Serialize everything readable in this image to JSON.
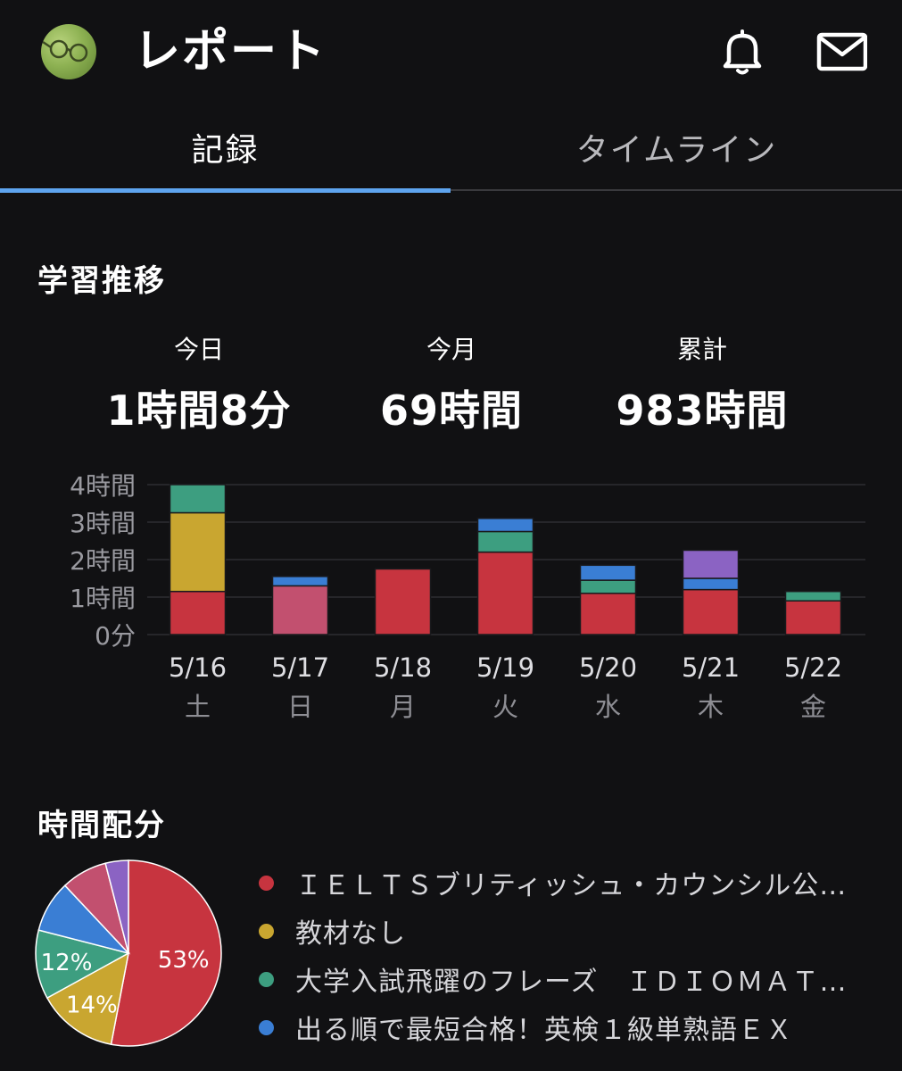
{
  "header": {
    "title": "レポート",
    "bell_icon": "bell-icon",
    "mail_icon": "mail-icon",
    "avatar_icon": "glasses-avatar"
  },
  "tabs": [
    {
      "label": "記録",
      "active": true
    },
    {
      "label": "タイムライン",
      "active": false
    }
  ],
  "section_trend": {
    "title": "学習推移"
  },
  "stats": [
    {
      "label": "今日",
      "value": "1時間8分"
    },
    {
      "label": "今月",
      "value": "69時間"
    },
    {
      "label": "累計",
      "value": "983時間"
    }
  ],
  "section_alloc": {
    "title": "時間配分"
  },
  "colors": {
    "red": "#c7343f",
    "yellow": "#c9a630",
    "green": "#3d9e80",
    "blue": "#3a7ed4",
    "pink": "#c2506f",
    "purple": "#8b63c3",
    "accent": "#5ea4ef"
  },
  "chart_data": [
    {
      "type": "bar",
      "stacked": true,
      "categories": [
        "5/16",
        "5/17",
        "5/18",
        "5/19",
        "5/20",
        "5/21",
        "5/22"
      ],
      "weekdays": [
        "土",
        "日",
        "月",
        "火",
        "水",
        "木",
        "金"
      ],
      "y_ticks": [
        "0分",
        "1時間",
        "2時間",
        "3時間",
        "4時間"
      ],
      "ylim": [
        0,
        4
      ],
      "grid": true,
      "series": [
        {
          "color": "#c7343f",
          "values": [
            1.15,
            0,
            1.75,
            2.2,
            1.1,
            1.2,
            0.9
          ]
        },
        {
          "color": "#c2506f",
          "values": [
            0,
            1.3,
            0,
            0,
            0,
            0,
            0
          ]
        },
        {
          "color": "#c9a630",
          "values": [
            2.1,
            0,
            0,
            0,
            0,
            0,
            0
          ]
        },
        {
          "color": "#3d9e80",
          "values": [
            0.75,
            0,
            0,
            0.55,
            0.35,
            0,
            0.25
          ]
        },
        {
          "color": "#3a7ed4",
          "values": [
            0,
            0.25,
            0,
            0.35,
            0.4,
            0.3,
            0
          ]
        },
        {
          "color": "#8b63c3",
          "values": [
            0,
            0,
            0,
            0,
            0,
            0.75,
            0
          ]
        }
      ]
    },
    {
      "type": "pie",
      "slices": [
        {
          "color": "#c7343f",
          "value": 53,
          "label": "53%"
        },
        {
          "color": "#c9a630",
          "value": 14,
          "label": "14%"
        },
        {
          "color": "#3d9e80",
          "value": 12,
          "label": "12%"
        },
        {
          "color": "#3a7ed4",
          "value": 9,
          "label": ""
        },
        {
          "color": "#c2506f",
          "value": 8,
          "label": ""
        },
        {
          "color": "#8b63c3",
          "value": 4,
          "label": ""
        }
      ],
      "legend": [
        {
          "color": "#c7343f",
          "label": "ＩＥＬＴＳブリティッシュ・カウンシル公…"
        },
        {
          "color": "#c9a630",
          "label": "教材なし"
        },
        {
          "color": "#3d9e80",
          "label": "大学入試飛躍のフレーズ　ＩＤＩＯＭＡＴ…"
        },
        {
          "color": "#3a7ed4",
          "label": "出る順で最短合格！英検１級単熟語ＥＸ"
        }
      ]
    }
  ]
}
